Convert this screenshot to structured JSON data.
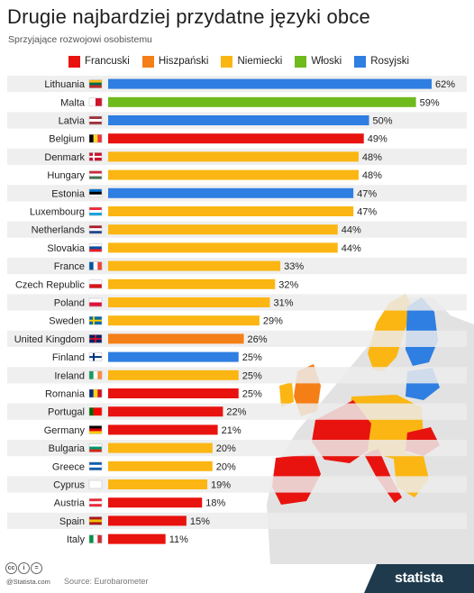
{
  "title": "Drugie najbardziej przydatne języki obce",
  "subtitle": "Sprzyjające rozwojowi osobistemu",
  "legend": [
    {
      "label": "Francuski",
      "color": "#e8130f"
    },
    {
      "label": "Hiszpański",
      "color": "#f57f17"
    },
    {
      "label": "Niemiecki",
      "color": "#fbb613"
    },
    {
      "label": "Włoski",
      "color": "#6fba1c"
    },
    {
      "label": "Rosyjski",
      "color": "#2f7ee2"
    }
  ],
  "chart_data": {
    "type": "bar",
    "orientation": "horizontal",
    "title": "Drugie najbardziej przydatne języki obce",
    "subtitle": "Sprzyjające rozwojowi osobistemu",
    "unit": "%",
    "xlim": [
      0,
      62
    ],
    "categories": [
      "Lithuania",
      "Malta",
      "Latvia",
      "Belgium",
      "Denmark",
      "Hungary",
      "Estonia",
      "Luxembourg",
      "Netherlands",
      "Slovakia",
      "France",
      "Czech Republic",
      "Poland",
      "Sweden",
      "United Kingdom",
      "Finland",
      "Ireland",
      "Romania",
      "Portugal",
      "Germany",
      "Bulgaria",
      "Greece",
      "Cyprus",
      "Austria",
      "Spain",
      "Italy"
    ],
    "values": [
      62,
      59,
      50,
      49,
      48,
      48,
      47,
      47,
      44,
      44,
      33,
      32,
      31,
      29,
      26,
      25,
      25,
      25,
      22,
      21,
      20,
      20,
      19,
      18,
      15,
      11
    ],
    "value_labels": [
      "62%",
      "59%",
      "50%",
      "49%",
      "48%",
      "48%",
      "47%",
      "47%",
      "44%",
      "44%",
      "33%",
      "32%",
      "31%",
      "29%",
      "26%",
      "25%",
      "25%",
      "25%",
      "22%",
      "21%",
      "20%",
      "20%",
      "19%",
      "18%",
      "15%",
      "11%"
    ],
    "languages": [
      "Rosyjski",
      "Włoski",
      "Rosyjski",
      "Francuski",
      "Niemiecki",
      "Niemiecki",
      "Rosyjski",
      "Niemiecki",
      "Niemiecki",
      "Niemiecki",
      "Niemiecki",
      "Niemiecki",
      "Niemiecki",
      "Niemiecki",
      "Hiszpański",
      "Rosyjski",
      "Niemiecki",
      "Francuski",
      "Francuski",
      "Francuski",
      "Niemiecki",
      "Niemiecki",
      "Niemiecki",
      "Francuski",
      "Francuski",
      "Francuski"
    ],
    "legend_position": "top"
  },
  "footer": {
    "cc_icons": [
      "cc",
      "i",
      "="
    ],
    "credit": "@Statista.com",
    "source": "Source: Eurobarometer",
    "logo": "statista"
  }
}
